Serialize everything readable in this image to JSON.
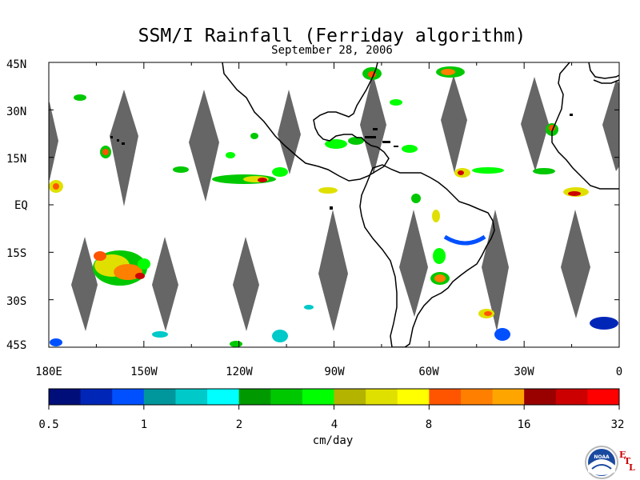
{
  "title": "SSM/I Rainfall (Ferriday algorithm)",
  "subtitle": "September 28, 2006",
  "map": {
    "lon_range": [
      -180,
      0
    ],
    "lat_range": [
      -45,
      45
    ],
    "y_tick_labels": [
      "45N",
      "30N",
      "15N",
      "EQ",
      "15S",
      "30S",
      "45S"
    ],
    "x_tick_labels": [
      "180E",
      "150W",
      "120W",
      "90W",
      "60W",
      "30W",
      "0"
    ],
    "background_color": "#ffffff",
    "swath_gap_color": "#666666",
    "coastline_color": "#000000"
  },
  "colorbar": {
    "unit_label": "cm/day",
    "tick_labels": [
      "0.5",
      "1",
      "2",
      "4",
      "8",
      "16",
      "32"
    ],
    "colors": [
      "#000e7a",
      "#0026b8",
      "#0050ff",
      "#00979c",
      "#00c9c9",
      "#00ffff",
      "#009900",
      "#00c800",
      "#00ff00",
      "#b3b300",
      "#e0e000",
      "#ffff00",
      "#ff5500",
      "#ff7f00",
      "#ffa500",
      "#990000",
      "#cc0000",
      "#ff0000"
    ]
  },
  "logo": {
    "name": "noaa-logo",
    "text": "NOAA",
    "badge": "ETL"
  }
}
